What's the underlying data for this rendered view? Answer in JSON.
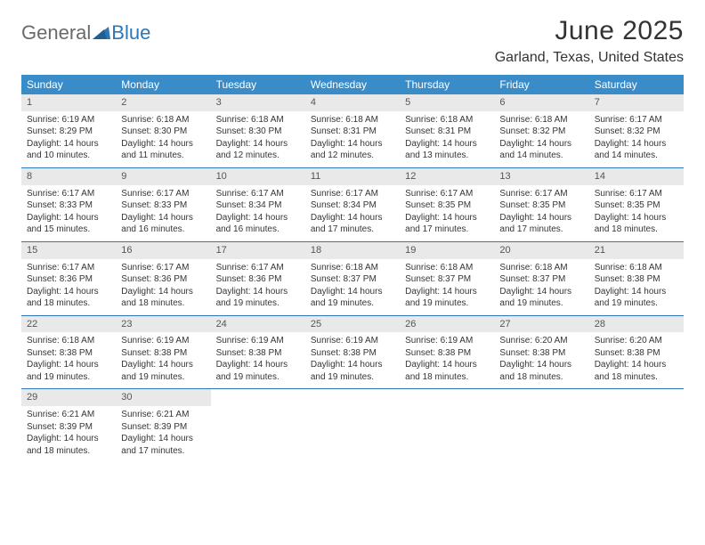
{
  "brand": {
    "word1": "General",
    "word2": "Blue"
  },
  "header": {
    "month_title": "June 2025",
    "location": "Garland, Texas, United States"
  },
  "colors": {
    "header_blue": "#3a8cc9",
    "divider_blue": "#2d76b7",
    "daynum_bg": "#e9e9e9",
    "text": "#333333",
    "logo_gray": "#6a6a6a"
  },
  "dow": [
    "Sunday",
    "Monday",
    "Tuesday",
    "Wednesday",
    "Thursday",
    "Friday",
    "Saturday"
  ],
  "weeks": [
    [
      {
        "n": "1",
        "sr": "Sunrise: 6:19 AM",
        "ss": "Sunset: 8:29 PM",
        "d1": "Daylight: 14 hours",
        "d2": "and 10 minutes."
      },
      {
        "n": "2",
        "sr": "Sunrise: 6:18 AM",
        "ss": "Sunset: 8:30 PM",
        "d1": "Daylight: 14 hours",
        "d2": "and 11 minutes."
      },
      {
        "n": "3",
        "sr": "Sunrise: 6:18 AM",
        "ss": "Sunset: 8:30 PM",
        "d1": "Daylight: 14 hours",
        "d2": "and 12 minutes."
      },
      {
        "n": "4",
        "sr": "Sunrise: 6:18 AM",
        "ss": "Sunset: 8:31 PM",
        "d1": "Daylight: 14 hours",
        "d2": "and 12 minutes."
      },
      {
        "n": "5",
        "sr": "Sunrise: 6:18 AM",
        "ss": "Sunset: 8:31 PM",
        "d1": "Daylight: 14 hours",
        "d2": "and 13 minutes."
      },
      {
        "n": "6",
        "sr": "Sunrise: 6:18 AM",
        "ss": "Sunset: 8:32 PM",
        "d1": "Daylight: 14 hours",
        "d2": "and 14 minutes."
      },
      {
        "n": "7",
        "sr": "Sunrise: 6:17 AM",
        "ss": "Sunset: 8:32 PM",
        "d1": "Daylight: 14 hours",
        "d2": "and 14 minutes."
      }
    ],
    [
      {
        "n": "8",
        "sr": "Sunrise: 6:17 AM",
        "ss": "Sunset: 8:33 PM",
        "d1": "Daylight: 14 hours",
        "d2": "and 15 minutes."
      },
      {
        "n": "9",
        "sr": "Sunrise: 6:17 AM",
        "ss": "Sunset: 8:33 PM",
        "d1": "Daylight: 14 hours",
        "d2": "and 16 minutes."
      },
      {
        "n": "10",
        "sr": "Sunrise: 6:17 AM",
        "ss": "Sunset: 8:34 PM",
        "d1": "Daylight: 14 hours",
        "d2": "and 16 minutes."
      },
      {
        "n": "11",
        "sr": "Sunrise: 6:17 AM",
        "ss": "Sunset: 8:34 PM",
        "d1": "Daylight: 14 hours",
        "d2": "and 17 minutes."
      },
      {
        "n": "12",
        "sr": "Sunrise: 6:17 AM",
        "ss": "Sunset: 8:35 PM",
        "d1": "Daylight: 14 hours",
        "d2": "and 17 minutes."
      },
      {
        "n": "13",
        "sr": "Sunrise: 6:17 AM",
        "ss": "Sunset: 8:35 PM",
        "d1": "Daylight: 14 hours",
        "d2": "and 17 minutes."
      },
      {
        "n": "14",
        "sr": "Sunrise: 6:17 AM",
        "ss": "Sunset: 8:35 PM",
        "d1": "Daylight: 14 hours",
        "d2": "and 18 minutes."
      }
    ],
    [
      {
        "n": "15",
        "sr": "Sunrise: 6:17 AM",
        "ss": "Sunset: 8:36 PM",
        "d1": "Daylight: 14 hours",
        "d2": "and 18 minutes."
      },
      {
        "n": "16",
        "sr": "Sunrise: 6:17 AM",
        "ss": "Sunset: 8:36 PM",
        "d1": "Daylight: 14 hours",
        "d2": "and 18 minutes."
      },
      {
        "n": "17",
        "sr": "Sunrise: 6:17 AM",
        "ss": "Sunset: 8:36 PM",
        "d1": "Daylight: 14 hours",
        "d2": "and 19 minutes."
      },
      {
        "n": "18",
        "sr": "Sunrise: 6:18 AM",
        "ss": "Sunset: 8:37 PM",
        "d1": "Daylight: 14 hours",
        "d2": "and 19 minutes."
      },
      {
        "n": "19",
        "sr": "Sunrise: 6:18 AM",
        "ss": "Sunset: 8:37 PM",
        "d1": "Daylight: 14 hours",
        "d2": "and 19 minutes."
      },
      {
        "n": "20",
        "sr": "Sunrise: 6:18 AM",
        "ss": "Sunset: 8:37 PM",
        "d1": "Daylight: 14 hours",
        "d2": "and 19 minutes."
      },
      {
        "n": "21",
        "sr": "Sunrise: 6:18 AM",
        "ss": "Sunset: 8:38 PM",
        "d1": "Daylight: 14 hours",
        "d2": "and 19 minutes."
      }
    ],
    [
      {
        "n": "22",
        "sr": "Sunrise: 6:18 AM",
        "ss": "Sunset: 8:38 PM",
        "d1": "Daylight: 14 hours",
        "d2": "and 19 minutes."
      },
      {
        "n": "23",
        "sr": "Sunrise: 6:19 AM",
        "ss": "Sunset: 8:38 PM",
        "d1": "Daylight: 14 hours",
        "d2": "and 19 minutes."
      },
      {
        "n": "24",
        "sr": "Sunrise: 6:19 AM",
        "ss": "Sunset: 8:38 PM",
        "d1": "Daylight: 14 hours",
        "d2": "and 19 minutes."
      },
      {
        "n": "25",
        "sr": "Sunrise: 6:19 AM",
        "ss": "Sunset: 8:38 PM",
        "d1": "Daylight: 14 hours",
        "d2": "and 19 minutes."
      },
      {
        "n": "26",
        "sr": "Sunrise: 6:19 AM",
        "ss": "Sunset: 8:38 PM",
        "d1": "Daylight: 14 hours",
        "d2": "and 18 minutes."
      },
      {
        "n": "27",
        "sr": "Sunrise: 6:20 AM",
        "ss": "Sunset: 8:38 PM",
        "d1": "Daylight: 14 hours",
        "d2": "and 18 minutes."
      },
      {
        "n": "28",
        "sr": "Sunrise: 6:20 AM",
        "ss": "Sunset: 8:38 PM",
        "d1": "Daylight: 14 hours",
        "d2": "and 18 minutes."
      }
    ],
    [
      {
        "n": "29",
        "sr": "Sunrise: 6:21 AM",
        "ss": "Sunset: 8:39 PM",
        "d1": "Daylight: 14 hours",
        "d2": "and 18 minutes."
      },
      {
        "n": "30",
        "sr": "Sunrise: 6:21 AM",
        "ss": "Sunset: 8:39 PM",
        "d1": "Daylight: 14 hours",
        "d2": "and 17 minutes."
      },
      null,
      null,
      null,
      null,
      null
    ]
  ]
}
